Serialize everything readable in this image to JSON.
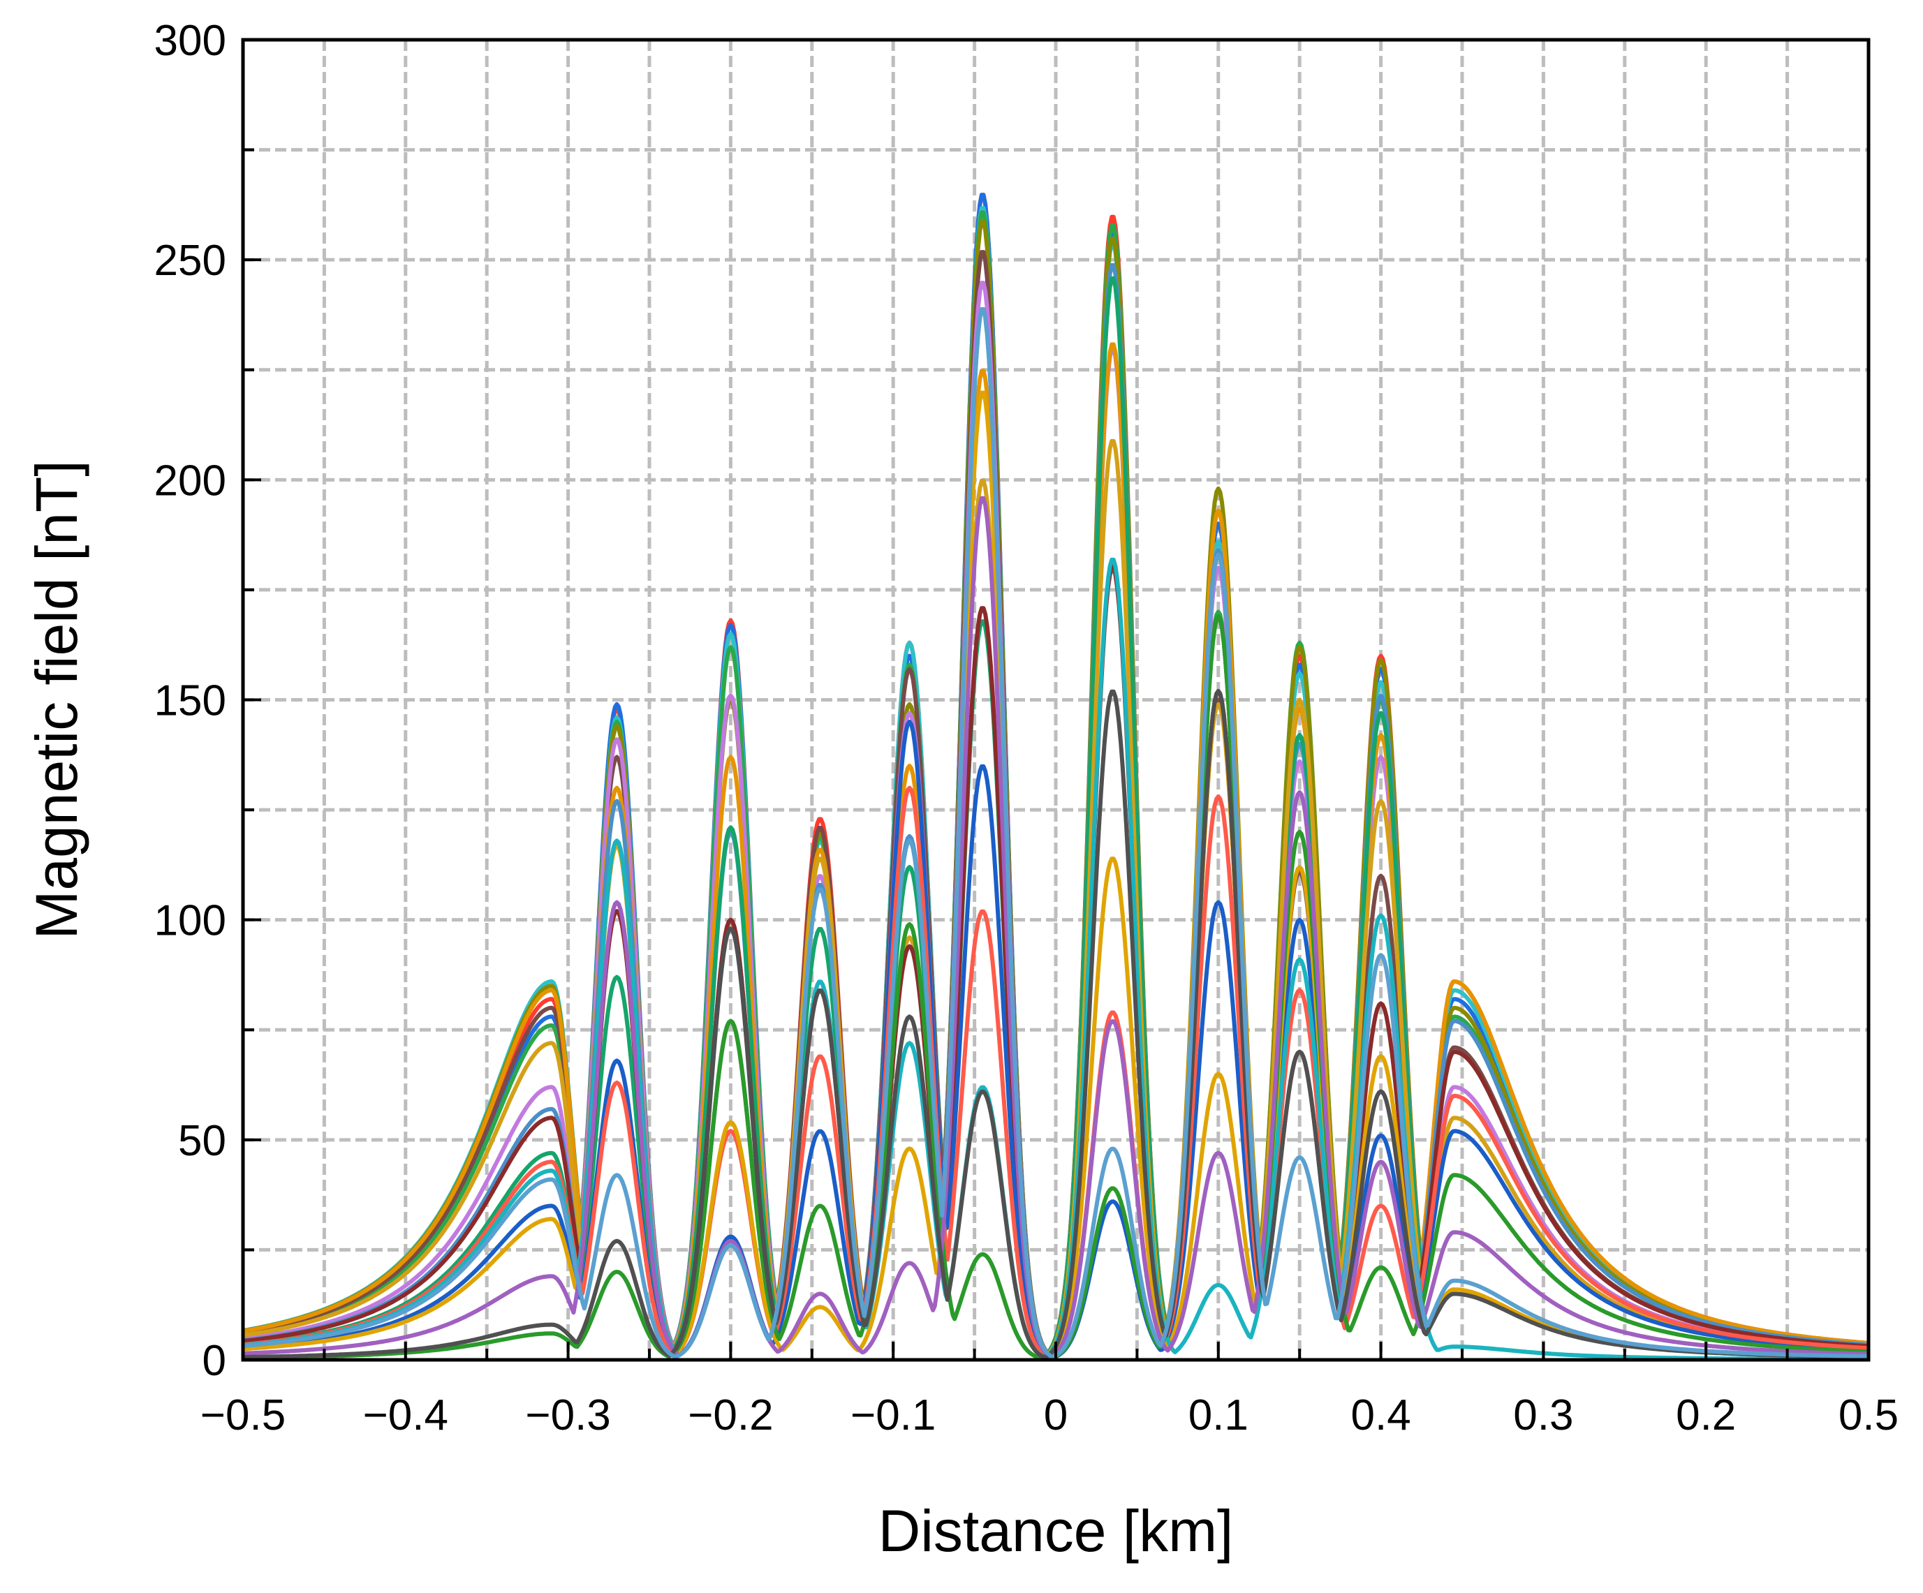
{
  "chart_data": {
    "type": "line",
    "xlabel": "Distance [km]",
    "ylabel": "Magnetic field [nT]",
    "xlim": [
      -0.5,
      0.5
    ],
    "ylim": [
      0,
      300
    ],
    "grid": true,
    "legend": "none",
    "x_tick_labels": [
      "−0.5",
      "−0.4",
      "−0.3",
      "−0.2",
      "−0.1",
      "0",
      "0.1",
      "0.4",
      "0.3",
      "0.2",
      "0.5"
    ],
    "y_tick_labels": [
      "0",
      "50",
      "100",
      "150",
      "200",
      "250",
      "300"
    ],
    "peak_positions_km": [
      -0.31,
      -0.27,
      -0.2,
      -0.145,
      -0.09,
      -0.045,
      0.035,
      0.1,
      0.15,
      0.2,
      0.245
    ],
    "series": [
      {
        "color": "#ff3b30",
        "peaks": [
          82,
          148,
          168,
          123,
          163,
          265,
          260,
          193,
          160,
          160,
          86
        ]
      },
      {
        "color": "#1f6fe0",
        "peaks": [
          78,
          149,
          167,
          120,
          160,
          265,
          257,
          190,
          158,
          157,
          82
        ]
      },
      {
        "color": "#2fc0c8",
        "peaks": [
          86,
          146,
          165,
          118,
          163,
          262,
          254,
          186,
          156,
          154,
          84
        ]
      },
      {
        "color": "#2ba84a",
        "peaks": [
          76,
          145,
          162,
          119,
          158,
          261,
          258,
          170,
          163,
          150,
          78
        ]
      },
      {
        "color": "#8a8a00",
        "peaks": [
          85,
          144,
          150,
          120,
          149,
          259,
          255,
          198,
          162,
          159,
          80
        ]
      },
      {
        "color": "#7b4a48",
        "peaks": [
          80,
          137,
          100,
          121,
          157,
          252,
          180,
          150,
          111,
          110,
          71
        ]
      },
      {
        "color": "#c27adf",
        "peaks": [
          62,
          141,
          151,
          110,
          147,
          245,
          230,
          180,
          136,
          137,
          62
        ]
      },
      {
        "color": "#e59400",
        "peaks": [
          84,
          130,
          137,
          116,
          135,
          225,
          231,
          193,
          148,
          142,
          86
        ]
      },
      {
        "color": "#4a8fc8",
        "peaks": [
          57,
          127,
          120,
          108,
          119,
          239,
          249,
          184,
          140,
          151,
          77
        ]
      },
      {
        "color": "#15a56b",
        "peaks": [
          47,
          87,
          121,
          98,
          112,
          168,
          246,
          169,
          142,
          147,
          70
        ]
      },
      {
        "color": "#d4a017",
        "peaks": [
          72,
          117,
          77,
          114,
          96,
          200,
          209,
          149,
          150,
          127,
          55
        ]
      },
      {
        "color": "#8c2a2a",
        "peaks": [
          55,
          102,
          100,
          84,
          94,
          171,
          181,
          152,
          70,
          81,
          70
        ]
      },
      {
        "color": "#1a5ec8",
        "peaks": [
          35,
          68,
          28,
          52,
          145,
          135,
          36,
          104,
          100,
          51,
          52
        ]
      },
      {
        "color": "#ff5a4a",
        "peaks": [
          45,
          63,
          52,
          69,
          130,
          102,
          79,
          128,
          84,
          35,
          60
        ]
      },
      {
        "color": "#e0a400",
        "peaks": [
          32,
          117,
          54,
          12,
          48,
          220,
          114,
          65,
          112,
          69,
          16
        ]
      },
      {
        "color": "#1ab4c0",
        "peaks": [
          43,
          118,
          77,
          86,
          72,
          62,
          182,
          17,
          91,
          101,
          3
        ]
      },
      {
        "color": "#2a9a2a",
        "peaks": [
          6,
          20,
          77,
          35,
          99,
          24,
          39,
          169,
          120,
          21,
          42
        ]
      },
      {
        "color": "#a060c0",
        "peaks": [
          19,
          104,
          27,
          15,
          22,
          196,
          77,
          47,
          129,
          45,
          29
        ]
      },
      {
        "color": "#505050",
        "peaks": [
          8,
          27,
          98,
          84,
          78,
          61,
          152,
          152,
          70,
          61,
          15
        ]
      },
      {
        "color": "#5aa0d0",
        "peaks": [
          41,
          42,
          26,
          107,
          118,
          239,
          48,
          183,
          46,
          92,
          18
        ]
      }
    ]
  }
}
